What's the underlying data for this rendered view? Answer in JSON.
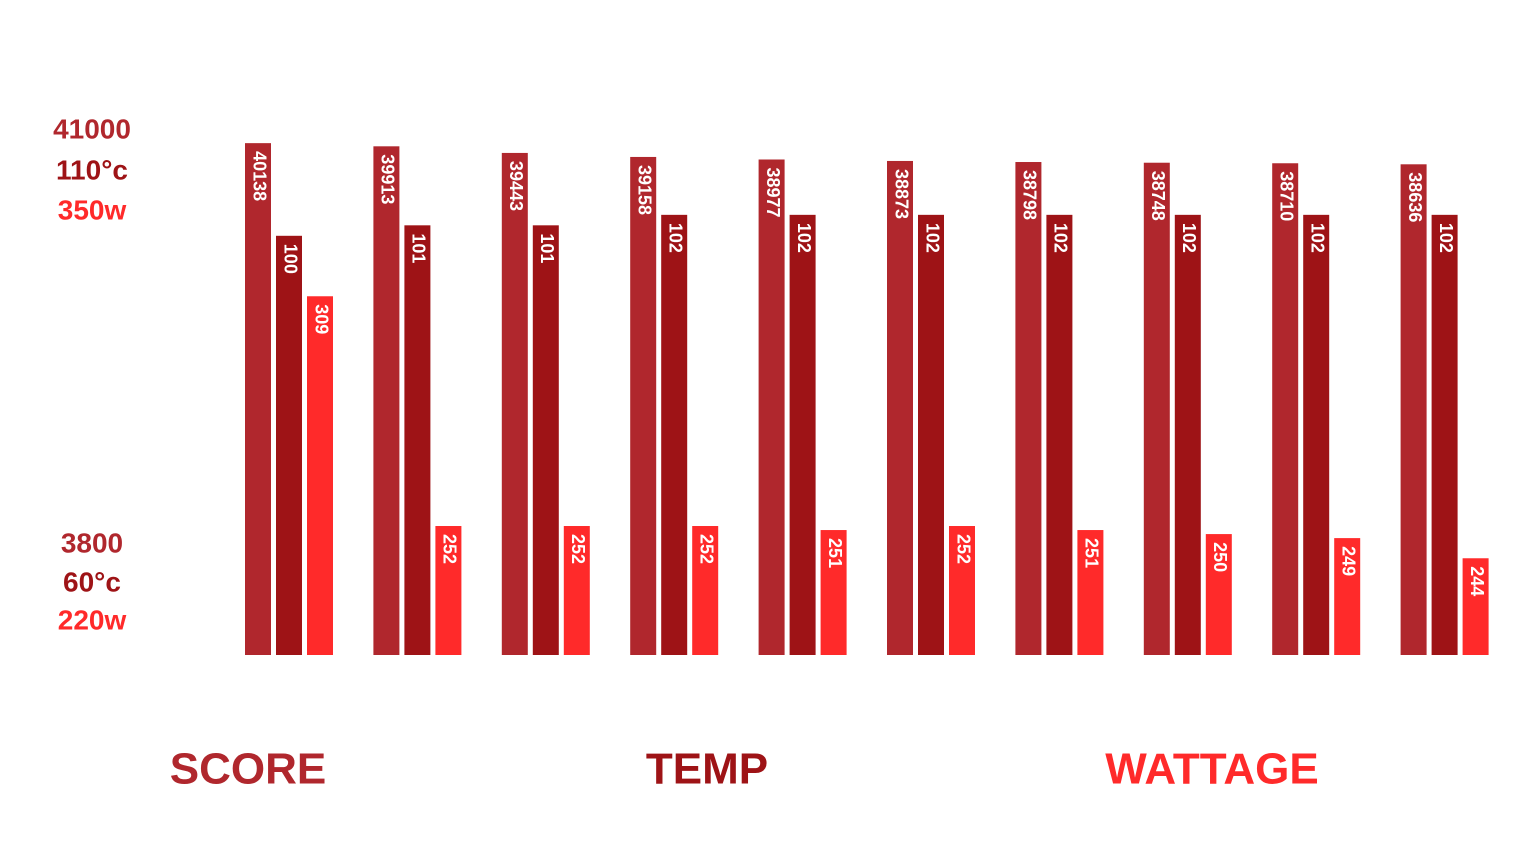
{
  "chart_data": {
    "type": "bar",
    "series": [
      {
        "name": "SCORE",
        "color": "#b0272d",
        "values": [
          40138,
          39913,
          39443,
          39158,
          38977,
          38873,
          38798,
          38748,
          38710,
          38636
        ],
        "lim": [
          3800,
          41000
        ],
        "ticks": [
          3800,
          41000
        ]
      },
      {
        "name": "TEMP",
        "color": "#9e1316",
        "values": [
          100,
          101,
          101,
          102,
          102,
          102,
          102,
          102,
          102,
          102
        ],
        "lim": [
          60,
          110
        ],
        "ticks": [
          {
            "value": 60,
            "label": "60°c"
          },
          {
            "value": 110,
            "label": "110°c"
          }
        ]
      },
      {
        "name": "WATTAGE",
        "color": "#ff2a2a",
        "values": [
          309,
          252,
          252,
          252,
          251,
          252,
          251,
          250,
          249,
          244
        ],
        "lim": [
          220,
          350
        ],
        "ticks": [
          {
            "value": 220,
            "label": "220w"
          },
          {
            "value": 350,
            "label": "350w"
          }
        ]
      }
    ]
  }
}
